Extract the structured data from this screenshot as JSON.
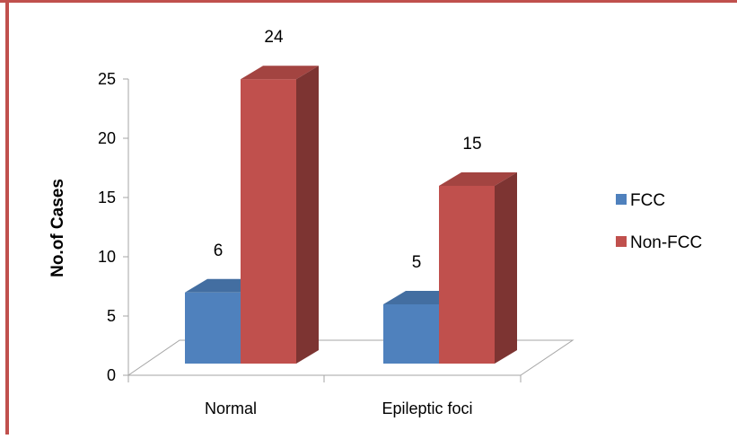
{
  "chart_data": {
    "type": "bar",
    "title": "",
    "xlabel": "",
    "ylabel": "No.of Cases",
    "categories": [
      "Normal",
      "Epileptic foci"
    ],
    "series": [
      {
        "name": "FCC",
        "values": [
          6,
          5
        ],
        "color": "#4F81BD"
      },
      {
        "name": "Non-FCC",
        "values": [
          24,
          15
        ],
        "color": "#C0504D"
      }
    ],
    "ylim": [
      0,
      25
    ],
    "yticks": [
      "0",
      "5",
      "10",
      "15",
      "20",
      "25"
    ],
    "grid": false,
    "legend": "right",
    "three_d": true,
    "frame_color": "#C0504D"
  }
}
